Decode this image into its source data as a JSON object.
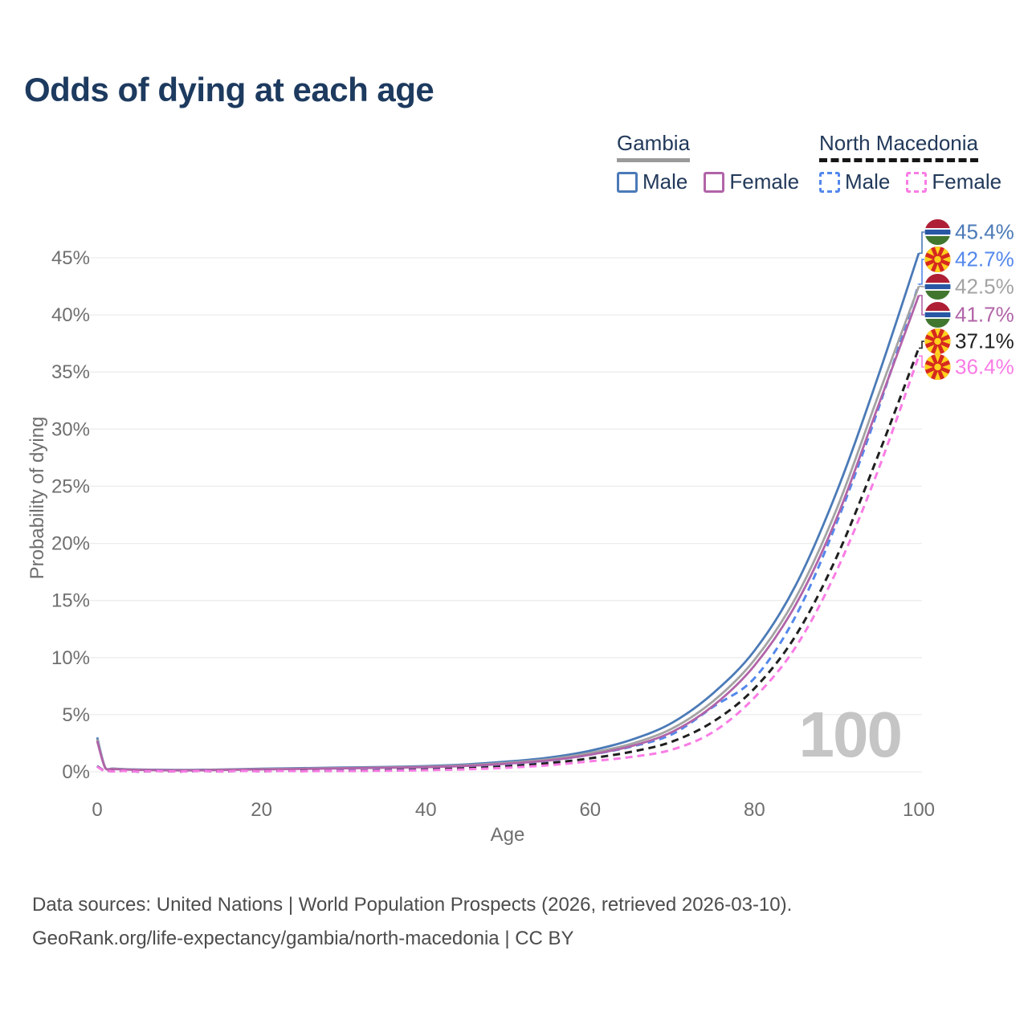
{
  "title": "Odds of dying at each age",
  "legend": {
    "groups": [
      {
        "name": "Gambia",
        "style": "solid",
        "items": [
          {
            "label": "Male",
            "color": "#4b7ab7"
          },
          {
            "label": "Female",
            "color": "#b164a8"
          }
        ]
      },
      {
        "name": "North Macedonia",
        "style": "dashed",
        "items": [
          {
            "label": "Male",
            "color": "#5488ec"
          },
          {
            "label": "Female",
            "color": "#f97ce5"
          }
        ]
      }
    ]
  },
  "chart_data": {
    "type": "line",
    "title": "Odds of dying at each age",
    "xlabel": "Age",
    "ylabel": "Probability of dying",
    "watermark": "100",
    "xlim": [
      0,
      100
    ],
    "ylim": [
      0,
      47.5
    ],
    "grid": "horizontal-only",
    "legend_position": "top-right",
    "xticks": [
      0,
      20,
      40,
      60,
      80,
      100
    ],
    "yticks": [
      "0%",
      "5%",
      "10%",
      "15%",
      "20%",
      "25%",
      "30%",
      "35%",
      "40%",
      "45%"
    ],
    "x": [
      0,
      1,
      2,
      5,
      10,
      15,
      20,
      25,
      30,
      35,
      40,
      45,
      50,
      55,
      60,
      65,
      70,
      75,
      80,
      85,
      90,
      95,
      100
    ],
    "series": [
      {
        "name": "Gambia Male",
        "country": "Gambia",
        "sex": "Male",
        "color": "#4b7ab7",
        "dash": false,
        "flag": "gambia-flag",
        "end_label": "45.4%",
        "end_value": 45.4,
        "values": [
          3.0,
          0.35,
          0.28,
          0.2,
          0.16,
          0.2,
          0.27,
          0.32,
          0.37,
          0.42,
          0.5,
          0.65,
          0.9,
          1.25,
          1.85,
          2.8,
          4.3,
          6.9,
          10.6,
          16.3,
          24.5,
          34.5,
          45.4
        ]
      },
      {
        "name": "North Macedonia Male",
        "country": "North Macedonia",
        "sex": "Male",
        "color": "#5488ec",
        "dash": true,
        "flag": "north-macedonia-flag",
        "end_label": "42.7%",
        "end_value": 42.7,
        "values": [
          0.5,
          0.05,
          0.04,
          0.02,
          0.02,
          0.04,
          0.07,
          0.09,
          0.11,
          0.15,
          0.25,
          0.4,
          0.62,
          0.98,
          1.5,
          2.2,
          3.3,
          5.7,
          8.2,
          13.6,
          21.8,
          31.6,
          42.7
        ]
      },
      {
        "name": "Gambia All",
        "country": "Gambia",
        "sex": "All",
        "color": "#a3a3a3",
        "dash": false,
        "flag": "gambia-flag",
        "end_label": "42.5%",
        "end_value": 42.5,
        "values": [
          2.85,
          0.33,
          0.26,
          0.18,
          0.14,
          0.18,
          0.24,
          0.28,
          0.33,
          0.38,
          0.45,
          0.58,
          0.8,
          1.1,
          1.65,
          2.45,
          3.8,
          6.2,
          9.8,
          15.2,
          23.0,
          32.8,
          42.5
        ]
      },
      {
        "name": "Gambia Female",
        "country": "Gambia",
        "sex": "Female",
        "color": "#b164a8",
        "dash": false,
        "flag": "gambia-flag",
        "end_label": "41.7%",
        "end_value": 41.7,
        "values": [
          2.7,
          0.3,
          0.24,
          0.17,
          0.13,
          0.16,
          0.21,
          0.25,
          0.3,
          0.35,
          0.41,
          0.52,
          0.72,
          1.0,
          1.5,
          2.25,
          3.5,
          5.8,
          9.3,
          14.6,
          22.2,
          31.9,
          41.7
        ]
      },
      {
        "name": "North Macedonia All",
        "country": "North Macedonia",
        "sex": "All",
        "color": "#1f1f1f",
        "dash": true,
        "flag": "north-macedonia-flag",
        "end_label": "37.1%",
        "end_value": 37.1,
        "values": [
          0.48,
          0.045,
          0.035,
          0.018,
          0.017,
          0.03,
          0.05,
          0.065,
          0.08,
          0.12,
          0.19,
          0.3,
          0.48,
          0.76,
          1.18,
          1.75,
          2.65,
          4.4,
          7.3,
          11.9,
          18.8,
          27.6,
          37.1
        ]
      },
      {
        "name": "North Macedonia Female",
        "country": "North Macedonia",
        "sex": "Female",
        "color": "#f97ce5",
        "dash": true,
        "flag": "north-macedonia-flag",
        "end_label": "36.4%",
        "end_value": 36.4,
        "values": [
          0.45,
          0.04,
          0.03,
          0.015,
          0.015,
          0.025,
          0.035,
          0.045,
          0.06,
          0.09,
          0.14,
          0.22,
          0.36,
          0.58,
          0.92,
          1.3,
          1.95,
          3.5,
          6.5,
          10.9,
          17.6,
          26.3,
          36.4
        ]
      }
    ]
  },
  "footer": {
    "line1": "Data sources: United Nations | World Population Prospects (2026, retrieved 2026-03-10).",
    "line2": "GeoRank.org/life-expectancy/gambia/north-macedonia | CC BY"
  }
}
